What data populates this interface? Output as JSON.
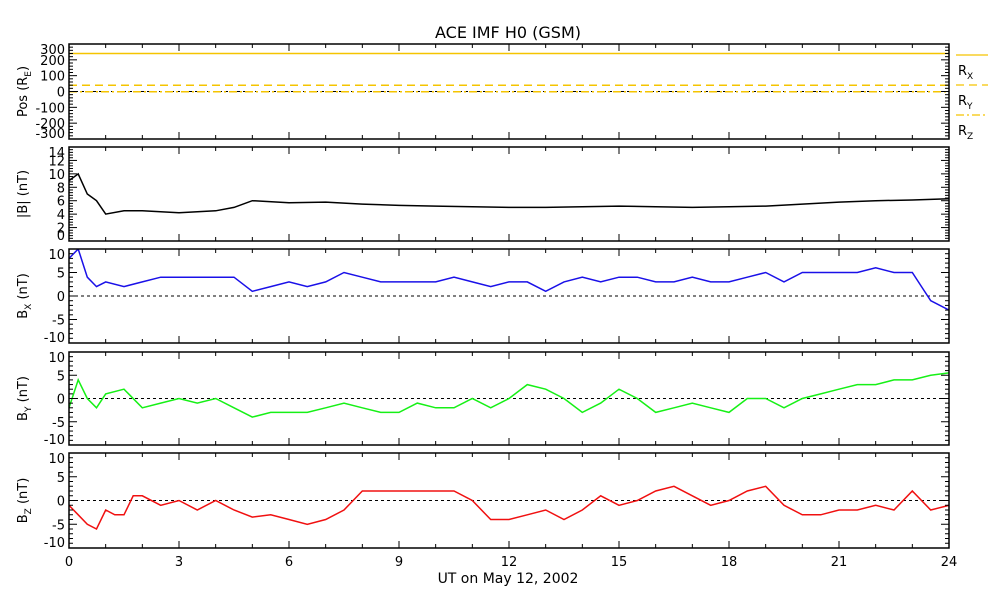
{
  "chart_data": {
    "type": "line",
    "title": "ACE IMF H0 (GSM)",
    "xlabel": "UT on May 12, 2002",
    "xlim": [
      0,
      24
    ],
    "xticks": [
      "0",
      "3",
      "6",
      "9",
      "12",
      "15",
      "18",
      "21",
      "24"
    ],
    "panels": [
      {
        "id": "pos",
        "ylabel": "Pos (R",
        "ylabel_sub": "E",
        "ylabel_end": ")",
        "ylim": [
          -300,
          300
        ],
        "yticks": [
          -300,
          -200,
          -100,
          0,
          100,
          200,
          300
        ],
        "zero_line": true,
        "legend": [
          {
            "label": "R",
            "sub": "X",
            "color": "#f5c400",
            "dash": ""
          },
          {
            "label": "R",
            "sub": "Y",
            "color": "#f5c400",
            "dash": "8,5"
          },
          {
            "label": "R",
            "sub": "Z",
            "color": "#f5c400",
            "dash": "8,3,2,3"
          }
        ],
        "series": [
          {
            "name": "RX",
            "color": "#f5c400",
            "dash": "",
            "x": [
              0,
              24
            ],
            "y": [
              240,
              240
            ]
          },
          {
            "name": "RY",
            "color": "#f5c400",
            "dash": "8,5",
            "x": [
              0,
              24
            ],
            "y": [
              40,
              40
            ]
          },
          {
            "name": "RZ",
            "color": "#f5c400",
            "dash": "8,3,2,3",
            "x": [
              0,
              24
            ],
            "y": [
              -2,
              -2
            ]
          }
        ]
      },
      {
        "id": "bmag",
        "ylabel": "|B| (nT)",
        "ylim": [
          0,
          14
        ],
        "yticks": [
          0,
          2,
          4,
          6,
          8,
          10,
          12,
          14
        ],
        "zero_line": false,
        "series": [
          {
            "name": "|B|",
            "color": "#000000",
            "dash": "",
            "x": [
              0,
              0.25,
              0.5,
              0.75,
              1,
              1.5,
              2,
              3,
              4,
              4.5,
              5,
              6,
              7,
              8,
              9,
              10,
              11,
              12,
              13,
              14,
              15,
              16,
              17,
              18,
              19,
              20,
              21,
              22,
              23,
              24
            ],
            "y": [
              9,
              10,
              7,
              6,
              4,
              4.5,
              4.5,
              4.2,
              4.5,
              5,
              6,
              5.7,
              5.8,
              5.5,
              5.3,
              5.2,
              5.1,
              5,
              5,
              5.1,
              5.2,
              5.1,
              5,
              5.1,
              5.2,
              5.5,
              5.8,
              6,
              6.1,
              6.3
            ]
          }
        ]
      },
      {
        "id": "bx",
        "ylabel": "B",
        "ylabel_sub": "X",
        "ylabel_end": " (nT)",
        "ylim": [
          -10,
          10
        ],
        "yticks": [
          -10,
          -5,
          0,
          5,
          10
        ],
        "zero_line": true,
        "series": [
          {
            "name": "BX",
            "color": "#1a10e8",
            "dash": "",
            "x": [
              0,
              0.25,
              0.5,
              0.75,
              1,
              1.5,
              2,
              2.5,
              3,
              3.5,
              4,
              4.5,
              5,
              5.5,
              6,
              6.5,
              7,
              7.5,
              8,
              8.5,
              9,
              9.5,
              10,
              10.5,
              11,
              11.5,
              12,
              12.5,
              13,
              13.5,
              14,
              14.5,
              15,
              15.5,
              16,
              16.5,
              17,
              17.5,
              18,
              18.5,
              19,
              19.5,
              20,
              20.5,
              21,
              21.5,
              22,
              22.5,
              23,
              23.25,
              23.5,
              24
            ],
            "y": [
              8,
              10,
              4,
              2,
              3,
              2,
              3,
              4,
              4,
              4,
              4,
              4,
              1,
              2,
              3,
              2,
              3,
              5,
              4,
              3,
              3,
              3,
              3,
              4,
              3,
              2,
              3,
              3,
              1,
              3,
              4,
              3,
              4,
              4,
              3,
              3,
              4,
              3,
              3,
              4,
              5,
              3,
              5,
              5,
              5,
              5,
              6,
              5,
              5,
              2,
              -1,
              -3
            ]
          }
        ]
      },
      {
        "id": "by",
        "ylabel": "B",
        "ylabel_sub": "Y",
        "ylabel_end": " (nT)",
        "ylim": [
          -10,
          10
        ],
        "yticks": [
          -10,
          -5,
          0,
          5,
          10
        ],
        "zero_line": true,
        "series": [
          {
            "name": "BY",
            "color": "#16f016",
            "dash": "",
            "x": [
              0,
              0.25,
              0.5,
              0.75,
              1,
              1.5,
              2,
              2.5,
              3,
              3.5,
              4,
              4.5,
              5,
              5.5,
              6,
              6.5,
              7,
              7.5,
              8,
              8.5,
              9,
              9.5,
              10,
              10.5,
              11,
              11.5,
              12,
              12.5,
              13,
              13.5,
              14,
              14.5,
              15,
              15.5,
              16,
              16.5,
              17,
              17.5,
              18,
              18.5,
              19,
              19.5,
              20,
              20.5,
              21,
              21.5,
              22,
              22.5,
              23,
              23.5,
              24
            ],
            "y": [
              -2,
              4,
              0,
              -2,
              1,
              2,
              -2,
              -1,
              0,
              -1,
              0,
              -2,
              -4,
              -3,
              -3,
              -3,
              -2,
              -1,
              -2,
              -3,
              -3,
              -1,
              -2,
              -2,
              0,
              -2,
              0,
              3,
              2,
              0,
              -3,
              -1,
              2,
              0,
              -3,
              -2,
              -1,
              -2,
              -3,
              0,
              0,
              -2,
              0,
              1,
              2,
              3,
              3,
              4,
              4,
              5,
              5.5
            ]
          }
        ]
      },
      {
        "id": "bz",
        "ylabel": "B",
        "ylabel_sub": "Z",
        "ylabel_end": " (nT)",
        "ylim": [
          -10,
          10
        ],
        "yticks": [
          -10,
          -5,
          0,
          5,
          10
        ],
        "zero_line": true,
        "series": [
          {
            "name": "BZ",
            "color": "#f01010",
            "dash": "",
            "x": [
              0,
              0.25,
              0.5,
              0.75,
              1,
              1.25,
              1.5,
              1.75,
              2,
              2.5,
              3,
              3.5,
              4,
              4.5,
              5,
              5.5,
              6,
              6.5,
              7,
              7.5,
              8,
              8.5,
              9,
              9.5,
              10,
              10.5,
              11,
              11.5,
              12,
              12.5,
              13,
              13.5,
              14,
              14.5,
              15,
              15.5,
              16,
              16.5,
              17,
              17.5,
              18,
              18.5,
              19,
              19.5,
              20,
              20.5,
              21,
              21.5,
              22,
              22.5,
              23,
              23.5,
              24
            ],
            "y": [
              -1,
              -3,
              -5,
              -6,
              -2,
              -3,
              -3,
              1,
              1,
              -1,
              0,
              -2,
              0,
              -2,
              -3.5,
              -3,
              -4,
              -5,
              -4,
              -2,
              2,
              2,
              2,
              2,
              2,
              2,
              0,
              -4,
              -4,
              -3,
              -2,
              -4,
              -2,
              1,
              -1,
              0,
              2,
              3,
              1,
              -1,
              0,
              2,
              3,
              -1,
              -3,
              -3,
              -2,
              -2,
              -1,
              -2,
              2,
              -2,
              -1
            ]
          }
        ]
      }
    ]
  }
}
